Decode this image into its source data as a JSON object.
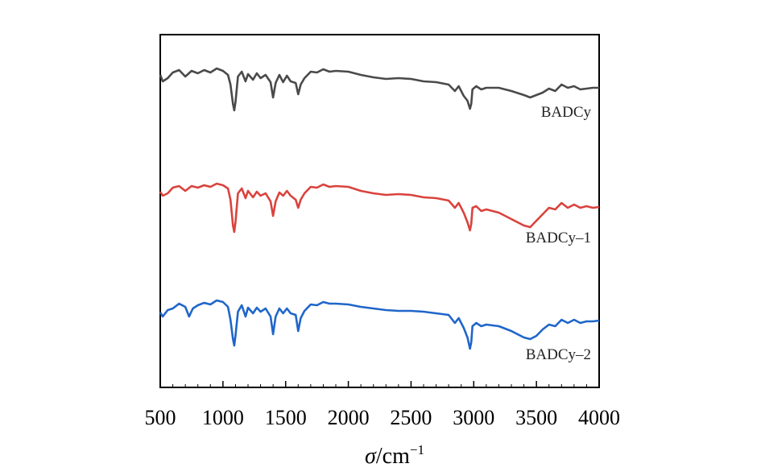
{
  "chart_data": {
    "type": "line",
    "xlabel_symbol": "σ",
    "xlabel_unit": "/cm",
    "xlabel_exponent": "−1",
    "xlim": [
      500,
      4000
    ],
    "xticks": [
      "500",
      "1000",
      "1500",
      "2000",
      "2500",
      "3000",
      "3500",
      "4000"
    ],
    "y_ticks_shown": false,
    "grid": false,
    "series": [
      {
        "name": "BADCy",
        "color": "#4a4a4a",
        "points": [
          [
            500,
            0.08
          ],
          [
            520,
            0.16
          ],
          [
            560,
            0.12
          ],
          [
            600,
            0.05
          ],
          [
            650,
            0.02
          ],
          [
            700,
            0.1
          ],
          [
            750,
            0.03
          ],
          [
            800,
            0.06
          ],
          [
            850,
            0.02
          ],
          [
            900,
            0.05
          ],
          [
            950,
            0.0
          ],
          [
            1000,
            0.03
          ],
          [
            1040,
            0.08
          ],
          [
            1060,
            0.2
          ],
          [
            1080,
            0.44
          ],
          [
            1090,
            0.52
          ],
          [
            1100,
            0.42
          ],
          [
            1120,
            0.1
          ],
          [
            1150,
            0.04
          ],
          [
            1180,
            0.16
          ],
          [
            1200,
            0.07
          ],
          [
            1240,
            0.14
          ],
          [
            1270,
            0.06
          ],
          [
            1300,
            0.12
          ],
          [
            1340,
            0.08
          ],
          [
            1380,
            0.17
          ],
          [
            1400,
            0.36
          ],
          [
            1420,
            0.18
          ],
          [
            1450,
            0.08
          ],
          [
            1480,
            0.17
          ],
          [
            1510,
            0.09
          ],
          [
            1540,
            0.16
          ],
          [
            1580,
            0.18
          ],
          [
            1600,
            0.32
          ],
          [
            1620,
            0.2
          ],
          [
            1650,
            0.12
          ],
          [
            1700,
            0.04
          ],
          [
            1750,
            0.05
          ],
          [
            1800,
            0.01
          ],
          [
            1850,
            0.04
          ],
          [
            1900,
            0.03
          ],
          [
            2000,
            0.04
          ],
          [
            2100,
            0.08
          ],
          [
            2200,
            0.11
          ],
          [
            2300,
            0.13
          ],
          [
            2400,
            0.12
          ],
          [
            2500,
            0.13
          ],
          [
            2600,
            0.16
          ],
          [
            2700,
            0.17
          ],
          [
            2800,
            0.2
          ],
          [
            2850,
            0.28
          ],
          [
            2880,
            0.22
          ],
          [
            2920,
            0.34
          ],
          [
            2950,
            0.4
          ],
          [
            2970,
            0.5
          ],
          [
            2980,
            0.44
          ],
          [
            2990,
            0.26
          ],
          [
            3020,
            0.22
          ],
          [
            3060,
            0.26
          ],
          [
            3100,
            0.24
          ],
          [
            3200,
            0.24
          ],
          [
            3300,
            0.28
          ],
          [
            3400,
            0.33
          ],
          [
            3450,
            0.36
          ],
          [
            3500,
            0.33
          ],
          [
            3550,
            0.3
          ],
          [
            3600,
            0.25
          ],
          [
            3650,
            0.28
          ],
          [
            3700,
            0.2
          ],
          [
            3750,
            0.24
          ],
          [
            3800,
            0.22
          ],
          [
            3850,
            0.26
          ],
          [
            3900,
            0.25
          ],
          [
            3950,
            0.24
          ],
          [
            4000,
            0.24
          ]
        ]
      },
      {
        "name": "BADCy–1",
        "color": "#d9433d",
        "points": [
          [
            500,
            0.1
          ],
          [
            520,
            0.15
          ],
          [
            560,
            0.12
          ],
          [
            600,
            0.05
          ],
          [
            650,
            0.03
          ],
          [
            700,
            0.09
          ],
          [
            750,
            0.03
          ],
          [
            800,
            0.05
          ],
          [
            850,
            0.02
          ],
          [
            900,
            0.04
          ],
          [
            950,
            0.0
          ],
          [
            1000,
            0.02
          ],
          [
            1040,
            0.06
          ],
          [
            1060,
            0.2
          ],
          [
            1080,
            0.52
          ],
          [
            1090,
            0.6
          ],
          [
            1100,
            0.48
          ],
          [
            1120,
            0.12
          ],
          [
            1150,
            0.06
          ],
          [
            1180,
            0.18
          ],
          [
            1200,
            0.09
          ],
          [
            1240,
            0.17
          ],
          [
            1270,
            0.1
          ],
          [
            1300,
            0.15
          ],
          [
            1340,
            0.12
          ],
          [
            1380,
            0.22
          ],
          [
            1400,
            0.4
          ],
          [
            1420,
            0.22
          ],
          [
            1450,
            0.11
          ],
          [
            1480,
            0.15
          ],
          [
            1510,
            0.09
          ],
          [
            1540,
            0.15
          ],
          [
            1580,
            0.2
          ],
          [
            1600,
            0.3
          ],
          [
            1620,
            0.2
          ],
          [
            1650,
            0.12
          ],
          [
            1700,
            0.04
          ],
          [
            1750,
            0.05
          ],
          [
            1800,
            0.01
          ],
          [
            1850,
            0.04
          ],
          [
            1900,
            0.03
          ],
          [
            2000,
            0.04
          ],
          [
            2100,
            0.09
          ],
          [
            2200,
            0.12
          ],
          [
            2300,
            0.14
          ],
          [
            2400,
            0.13
          ],
          [
            2500,
            0.14
          ],
          [
            2600,
            0.17
          ],
          [
            2700,
            0.18
          ],
          [
            2800,
            0.21
          ],
          [
            2850,
            0.3
          ],
          [
            2880,
            0.24
          ],
          [
            2920,
            0.36
          ],
          [
            2950,
            0.48
          ],
          [
            2970,
            0.58
          ],
          [
            2980,
            0.5
          ],
          [
            2990,
            0.3
          ],
          [
            3020,
            0.28
          ],
          [
            3060,
            0.34
          ],
          [
            3100,
            0.32
          ],
          [
            3200,
            0.36
          ],
          [
            3300,
            0.44
          ],
          [
            3400,
            0.52
          ],
          [
            3450,
            0.54
          ],
          [
            3500,
            0.46
          ],
          [
            3550,
            0.38
          ],
          [
            3600,
            0.3
          ],
          [
            3650,
            0.32
          ],
          [
            3700,
            0.24
          ],
          [
            3750,
            0.3
          ],
          [
            3800,
            0.26
          ],
          [
            3850,
            0.3
          ],
          [
            3900,
            0.28
          ],
          [
            3950,
            0.3
          ],
          [
            4000,
            0.29
          ]
        ]
      },
      {
        "name": "BADCy–2",
        "color": "#1f66c9",
        "points": [
          [
            500,
            0.15
          ],
          [
            520,
            0.2
          ],
          [
            560,
            0.12
          ],
          [
            600,
            0.1
          ],
          [
            650,
            0.04
          ],
          [
            700,
            0.08
          ],
          [
            730,
            0.2
          ],
          [
            760,
            0.1
          ],
          [
            800,
            0.06
          ],
          [
            850,
            0.03
          ],
          [
            900,
            0.05
          ],
          [
            950,
            0.0
          ],
          [
            1000,
            0.02
          ],
          [
            1040,
            0.08
          ],
          [
            1060,
            0.24
          ],
          [
            1080,
            0.48
          ],
          [
            1090,
            0.56
          ],
          [
            1100,
            0.44
          ],
          [
            1120,
            0.14
          ],
          [
            1150,
            0.06
          ],
          [
            1180,
            0.2
          ],
          [
            1200,
            0.09
          ],
          [
            1240,
            0.16
          ],
          [
            1270,
            0.09
          ],
          [
            1300,
            0.14
          ],
          [
            1340,
            0.1
          ],
          [
            1380,
            0.2
          ],
          [
            1400,
            0.42
          ],
          [
            1420,
            0.2
          ],
          [
            1450,
            0.1
          ],
          [
            1480,
            0.16
          ],
          [
            1510,
            0.1
          ],
          [
            1540,
            0.16
          ],
          [
            1580,
            0.18
          ],
          [
            1600,
            0.38
          ],
          [
            1620,
            0.22
          ],
          [
            1650,
            0.13
          ],
          [
            1700,
            0.05
          ],
          [
            1750,
            0.06
          ],
          [
            1800,
            0.02
          ],
          [
            1850,
            0.04
          ],
          [
            1900,
            0.04
          ],
          [
            2000,
            0.05
          ],
          [
            2100,
            0.08
          ],
          [
            2200,
            0.1
          ],
          [
            2300,
            0.12
          ],
          [
            2400,
            0.13
          ],
          [
            2500,
            0.13
          ],
          [
            2600,
            0.14
          ],
          [
            2700,
            0.16
          ],
          [
            2800,
            0.18
          ],
          [
            2850,
            0.28
          ],
          [
            2880,
            0.22
          ],
          [
            2920,
            0.34
          ],
          [
            2950,
            0.46
          ],
          [
            2970,
            0.6
          ],
          [
            2980,
            0.52
          ],
          [
            2990,
            0.32
          ],
          [
            3020,
            0.28
          ],
          [
            3060,
            0.32
          ],
          [
            3100,
            0.3
          ],
          [
            3200,
            0.32
          ],
          [
            3300,
            0.38
          ],
          [
            3400,
            0.46
          ],
          [
            3450,
            0.48
          ],
          [
            3500,
            0.44
          ],
          [
            3550,
            0.36
          ],
          [
            3600,
            0.3
          ],
          [
            3650,
            0.32
          ],
          [
            3700,
            0.24
          ],
          [
            3750,
            0.28
          ],
          [
            3800,
            0.24
          ],
          [
            3850,
            0.28
          ],
          [
            3900,
            0.26
          ],
          [
            3950,
            0.26
          ],
          [
            4000,
            0.25
          ]
        ]
      }
    ]
  }
}
